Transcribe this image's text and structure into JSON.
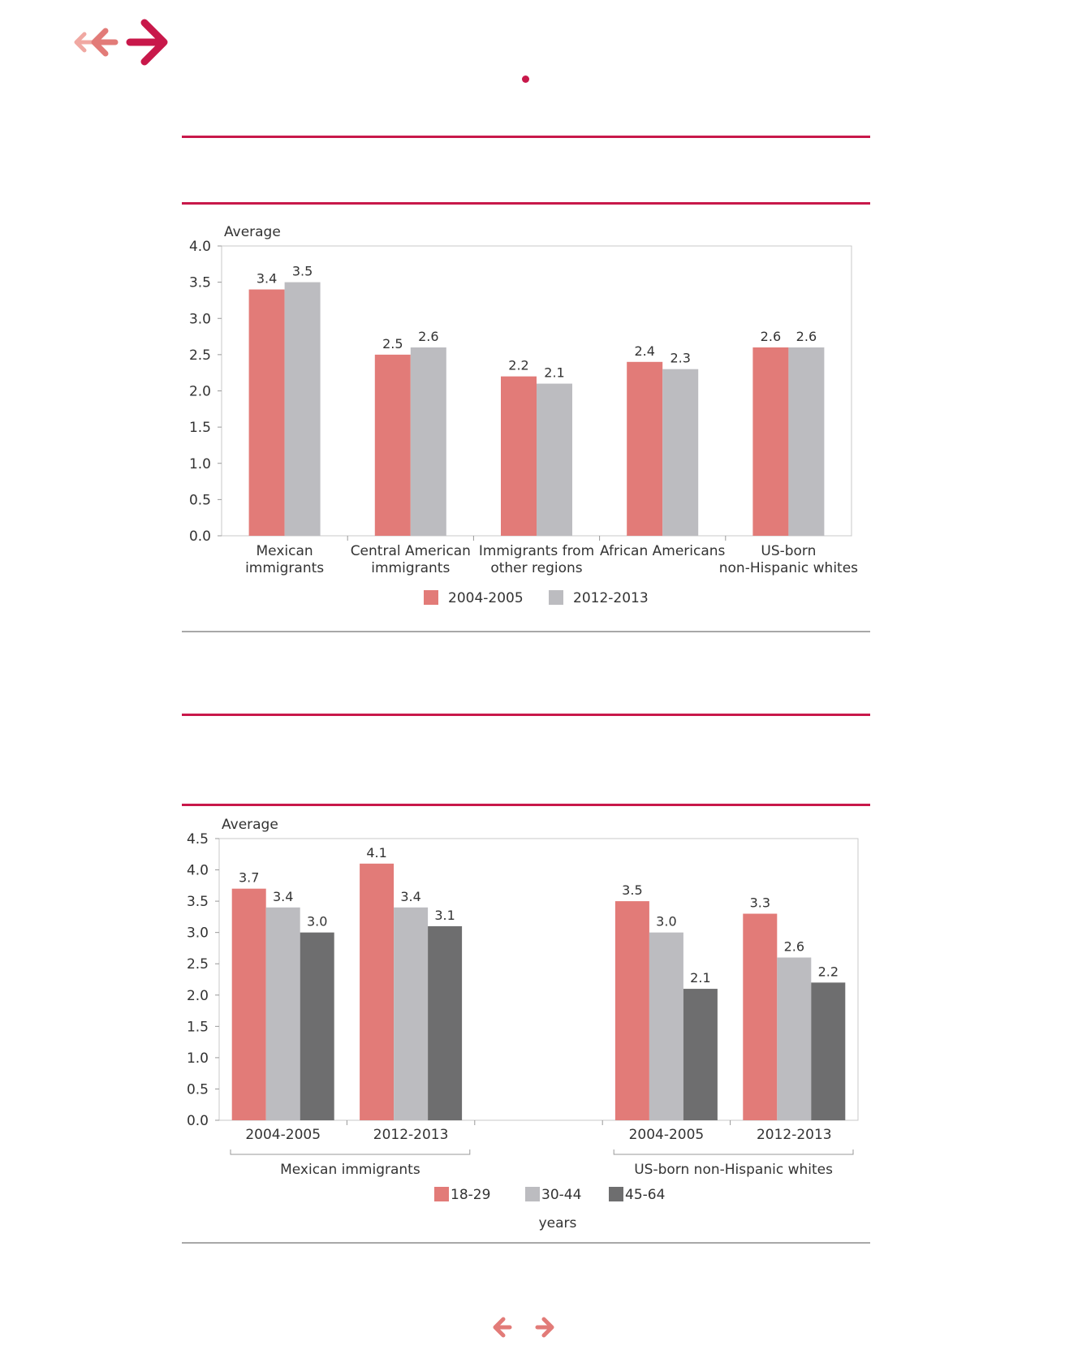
{
  "nav": {
    "back_double_icon": "double-back-arrow-icon",
    "back_icon": "back-arrow-icon",
    "forward_icon": "forward-arrow-icon",
    "prev_page_icon": "prev-page-arrow-icon",
    "next_page_icon": "next-page-arrow-icon"
  },
  "colors": {
    "accent": "#c8184a",
    "series_pink": "#e27b78",
    "series_light_gray": "#bcbcc0",
    "series_dark_gray": "#6e6e6f",
    "rule_gray": "#a8a8a8"
  },
  "chart_data": [
    {
      "type": "bar",
      "ylabel": "Average",
      "ylim": [
        0,
        4.0
      ],
      "yticks": [
        "0.0",
        "0.5",
        "1.0",
        "1.5",
        "2.0",
        "2.5",
        "3.0",
        "3.5",
        "4.0"
      ],
      "categories": [
        [
          "Mexican",
          "immigrants"
        ],
        [
          "Central American",
          "immigrants"
        ],
        [
          "Immigrants from",
          "other regions"
        ],
        [
          "African Americans"
        ],
        [
          "US-born",
          "non-Hispanic whites"
        ]
      ],
      "series": [
        {
          "name": "2004-2005",
          "color": "#e27b78",
          "values": [
            3.4,
            2.5,
            2.2,
            2.4,
            2.6
          ]
        },
        {
          "name": "2012-2013",
          "color": "#bcbcc0",
          "values": [
            3.5,
            2.6,
            2.1,
            2.3,
            2.6
          ]
        }
      ],
      "legend_position": "bottom-center",
      "grid": false
    },
    {
      "type": "bar",
      "ylabel": "Average",
      "ylim": [
        0,
        4.5
      ],
      "yticks": [
        "0.0",
        "0.5",
        "1.0",
        "1.5",
        "2.0",
        "2.5",
        "3.0",
        "3.5",
        "4.0",
        "4.5"
      ],
      "categories": [
        "2004-2005",
        "2012-2013",
        "",
        "2004-2005",
        "2012-2013"
      ],
      "groups": [
        {
          "label": "Mexican immigrants",
          "categories": [
            0,
            1
          ]
        },
        {
          "label": "US-born non-Hispanic whites",
          "categories": [
            3,
            4
          ]
        }
      ],
      "series": [
        {
          "name": "18-29",
          "color": "#e27b78",
          "values": [
            3.7,
            4.1,
            null,
            3.5,
            3.3
          ]
        },
        {
          "name": "30-44",
          "color": "#bcbcc0",
          "values": [
            3.4,
            3.4,
            null,
            3.0,
            2.6
          ]
        },
        {
          "name": "45-64",
          "color": "#6e6e6f",
          "values": [
            3.0,
            3.1,
            null,
            2.1,
            2.2
          ]
        }
      ],
      "legend_title": "years",
      "legend_position": "bottom-center",
      "grid": false
    }
  ]
}
